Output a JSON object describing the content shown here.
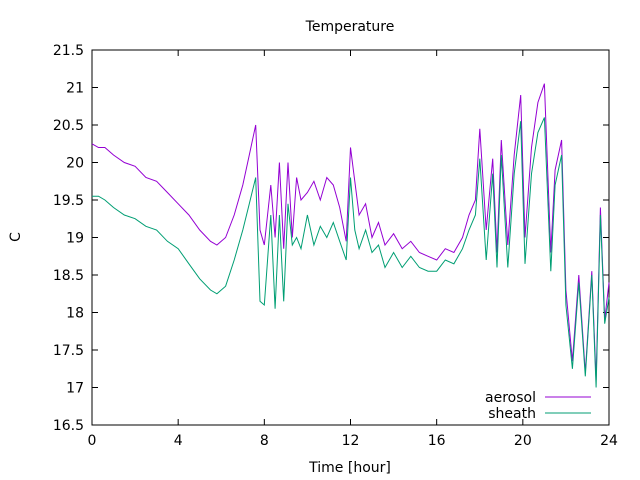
{
  "chart_data": {
    "type": "line",
    "title": "Temperature",
    "xlabel": "Time [hour]",
    "ylabel": "C",
    "xlim": [
      0,
      24
    ],
    "ylim": [
      16.5,
      21.5
    ],
    "x_ticks": [
      0,
      4,
      8,
      12,
      16,
      20,
      24
    ],
    "y_ticks": [
      16.5,
      17,
      17.5,
      18,
      18.5,
      19,
      19.5,
      20,
      20.5,
      21,
      21.5
    ],
    "x_tick_labels": [
      "0",
      "4",
      "8",
      "12",
      "16",
      "20",
      "24"
    ],
    "y_tick_labels": [
      "16.5",
      "17",
      "17.5",
      "18",
      "18.5",
      "19",
      "19.5",
      "20",
      "20.5",
      "21",
      "21.5"
    ],
    "grid": false,
    "legend_position": "bottom-right",
    "series": [
      {
        "name": "aerosol",
        "color": "#9400d3",
        "x": [
          0,
          0.3,
          0.6,
          1.0,
          1.5,
          2.0,
          2.5,
          3.0,
          3.5,
          4.0,
          4.5,
          5.0,
          5.5,
          5.8,
          6.2,
          6.6,
          7.0,
          7.3,
          7.6,
          7.8,
          8.0,
          8.3,
          8.5,
          8.7,
          8.9,
          9.1,
          9.3,
          9.5,
          9.7,
          10.0,
          10.3,
          10.6,
          10.9,
          11.2,
          11.5,
          11.8,
          12.0,
          12.2,
          12.4,
          12.7,
          13.0,
          13.3,
          13.6,
          14.0,
          14.4,
          14.8,
          15.2,
          15.6,
          16.0,
          16.4,
          16.8,
          17.2,
          17.5,
          17.8,
          18.0,
          18.3,
          18.6,
          18.8,
          19.0,
          19.3,
          19.6,
          19.9,
          20.1,
          20.4,
          20.7,
          21.0,
          21.3,
          21.5,
          21.8,
          22.0,
          22.3,
          22.6,
          22.9,
          23.2,
          23.4,
          23.6,
          23.8,
          24.0
        ],
        "y": [
          20.25,
          20.2,
          20.2,
          20.1,
          20.0,
          19.95,
          19.8,
          19.75,
          19.6,
          19.45,
          19.3,
          19.1,
          18.95,
          18.9,
          19.0,
          19.3,
          19.7,
          20.1,
          20.5,
          19.1,
          18.9,
          19.7,
          19.0,
          20.0,
          18.85,
          20.0,
          19.0,
          19.8,
          19.5,
          19.6,
          19.75,
          19.5,
          19.8,
          19.7,
          19.4,
          18.95,
          20.2,
          19.75,
          19.3,
          19.45,
          19.0,
          19.2,
          18.9,
          19.05,
          18.85,
          18.95,
          18.8,
          18.75,
          18.7,
          18.85,
          18.8,
          19.0,
          19.3,
          19.5,
          20.45,
          19.1,
          20.05,
          18.8,
          20.3,
          18.9,
          20.1,
          20.9,
          19.0,
          20.2,
          20.8,
          21.05,
          18.8,
          19.9,
          20.3,
          18.3,
          17.35,
          18.5,
          17.2,
          18.55,
          17.1,
          19.4,
          17.9,
          18.4
        ]
      },
      {
        "name": "sheath",
        "color": "#009e73",
        "x": [
          0,
          0.3,
          0.6,
          1.0,
          1.5,
          2.0,
          2.5,
          3.0,
          3.5,
          4.0,
          4.5,
          5.0,
          5.5,
          5.8,
          6.2,
          6.6,
          7.0,
          7.3,
          7.6,
          7.8,
          8.0,
          8.3,
          8.5,
          8.7,
          8.9,
          9.1,
          9.3,
          9.5,
          9.7,
          10.0,
          10.3,
          10.6,
          10.9,
          11.2,
          11.5,
          11.8,
          12.0,
          12.2,
          12.4,
          12.7,
          13.0,
          13.3,
          13.6,
          14.0,
          14.4,
          14.8,
          15.2,
          15.6,
          16.0,
          16.4,
          16.8,
          17.2,
          17.5,
          17.8,
          18.0,
          18.3,
          18.6,
          18.8,
          19.0,
          19.3,
          19.6,
          19.9,
          20.1,
          20.4,
          20.7,
          21.0,
          21.3,
          21.5,
          21.8,
          22.0,
          22.3,
          22.6,
          22.9,
          23.2,
          23.4,
          23.6,
          23.8,
          24.0
        ],
        "y": [
          19.55,
          19.55,
          19.5,
          19.4,
          19.3,
          19.25,
          19.15,
          19.1,
          18.95,
          18.85,
          18.65,
          18.45,
          18.3,
          18.25,
          18.35,
          18.7,
          19.1,
          19.45,
          19.8,
          18.15,
          18.1,
          19.3,
          18.05,
          19.3,
          18.15,
          19.45,
          18.9,
          19.0,
          18.85,
          19.3,
          18.9,
          19.15,
          19.0,
          19.2,
          18.95,
          18.7,
          19.8,
          19.1,
          18.85,
          19.1,
          18.8,
          18.9,
          18.6,
          18.8,
          18.6,
          18.75,
          18.6,
          18.55,
          18.55,
          18.7,
          18.65,
          18.85,
          19.1,
          19.3,
          20.05,
          18.7,
          19.85,
          18.6,
          20.1,
          18.6,
          19.85,
          20.55,
          18.65,
          19.85,
          20.4,
          20.6,
          18.55,
          19.7,
          20.1,
          18.1,
          17.25,
          18.4,
          17.15,
          18.5,
          17.0,
          19.3,
          17.85,
          18.2
        ]
      }
    ]
  }
}
